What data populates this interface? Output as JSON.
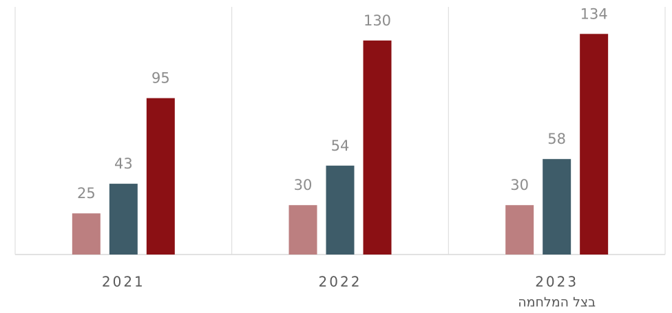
{
  "chart_data": {
    "type": "bar",
    "categories": [
      "2021",
      "2022",
      "2023"
    ],
    "annotation": "בצל המלחמה",
    "series": [
      {
        "color": "#bc7f80",
        "values": [
          25,
          30,
          30
        ]
      },
      {
        "color": "#3e5c69",
        "values": [
          43,
          54,
          58
        ]
      },
      {
        "color": "#8b1014",
        "values": [
          95,
          130,
          134
        ]
      }
    ],
    "ylim": [
      0,
      150
    ]
  }
}
